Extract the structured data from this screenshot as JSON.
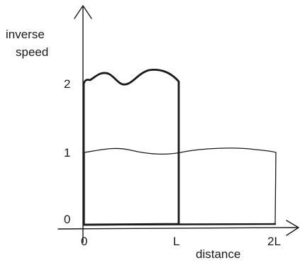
{
  "axes": {
    "y_label_line1": "inverse",
    "y_label_line2": "speed",
    "x_label": "distance",
    "y_ticks": [
      "0",
      "1",
      "2"
    ],
    "x_ticks": [
      "0",
      "L",
      "2L"
    ]
  }
}
